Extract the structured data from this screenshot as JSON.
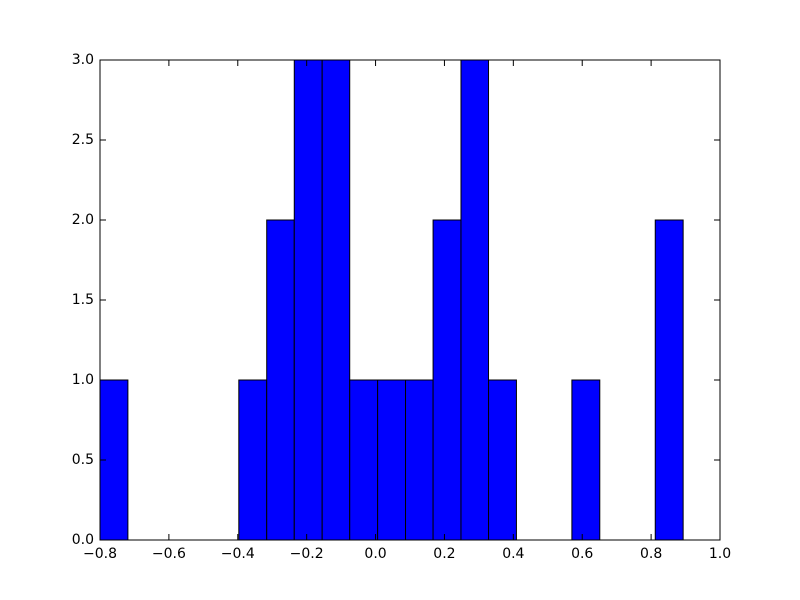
{
  "chart_data": {
    "type": "histogram",
    "bins": [
      -0.8,
      -0.719,
      -0.639,
      -0.558,
      -0.478,
      -0.397,
      -0.316,
      -0.236,
      -0.155,
      -0.075,
      0.006,
      0.087,
      0.167,
      0.248,
      0.328,
      0.409,
      0.49,
      0.57,
      0.651,
      0.731,
      0.812,
      0.893
    ],
    "values": [
      1,
      0,
      0,
      0,
      0,
      1,
      2,
      3,
      3,
      1,
      1,
      1,
      2,
      3,
      1,
      0,
      0,
      1,
      0,
      0,
      2
    ],
    "color": "#0000ff",
    "xlim": [
      -0.8,
      1.0
    ],
    "xticks": [
      {
        "value": -0.8,
        "label": "−0.8"
      },
      {
        "value": -0.6,
        "label": "−0.6"
      },
      {
        "value": -0.4,
        "label": "−0.4"
      },
      {
        "value": -0.2,
        "label": "−0.2"
      },
      {
        "value": 0,
        "label": "0.0"
      },
      {
        "value": 0.2,
        "label": "0.2"
      },
      {
        "value": 0.4,
        "label": "0.4"
      },
      {
        "value": 0.6,
        "label": "0.6"
      },
      {
        "value": 0.8,
        "label": "0.8"
      },
      {
        "value": 1,
        "label": "1.0"
      }
    ],
    "ylim": [
      0,
      3
    ],
    "yticks": [
      {
        "value": 0,
        "label": "0.0"
      },
      {
        "value": 0.5,
        "label": "0.5"
      },
      {
        "value": 1,
        "label": "1.0"
      },
      {
        "value": 1.5,
        "label": "1.5"
      },
      {
        "value": 2,
        "label": "2.0"
      },
      {
        "value": 2.5,
        "label": "2.5"
      },
      {
        "value": 3,
        "label": "3.0"
      }
    ],
    "grid": false
  }
}
